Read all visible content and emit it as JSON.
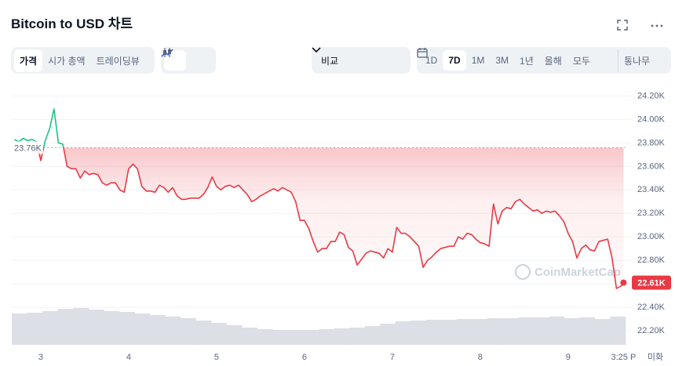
{
  "header": {
    "title": "Bitcoin to USD 차트",
    "tabs": [
      "가격",
      "시가 총액",
      "트레이딩뷰"
    ],
    "compare": "비교",
    "ranges": [
      "1D",
      "7D",
      "1M",
      "3M",
      "1년",
      "올해",
      "모두"
    ],
    "log": "통나무"
  },
  "watermark": "CoinMarketCap",
  "currency": "미화",
  "chart_data": {
    "type": "line",
    "x": [
      2.7,
      2.75,
      2.8,
      2.85,
      2.9,
      2.95,
      3,
      3.05,
      3.1,
      3.15,
      3.2,
      3.25,
      3.3,
      3.35,
      3.4,
      3.45,
      3.5,
      3.55,
      3.6,
      3.65,
      3.7,
      3.75,
      3.8,
      3.85,
      3.9,
      3.95,
      4,
      4.05,
      4.1,
      4.15,
      4.2,
      4.25,
      4.3,
      4.35,
      4.4,
      4.45,
      4.5,
      4.55,
      4.6,
      4.65,
      4.7,
      4.75,
      4.8,
      4.85,
      4.9,
      4.95,
      5,
      5.05,
      5.1,
      5.15,
      5.2,
      5.25,
      5.3,
      5.35,
      5.4,
      5.45,
      5.5,
      5.55,
      5.6,
      5.65,
      5.7,
      5.75,
      5.8,
      5.85,
      5.9,
      5.95,
      6,
      6.05,
      6.1,
      6.15,
      6.2,
      6.25,
      6.3,
      6.35,
      6.4,
      6.45,
      6.5,
      6.55,
      6.6,
      6.65,
      6.7,
      6.75,
      6.8,
      6.85,
      6.9,
      6.95,
      7,
      7.05,
      7.1,
      7.15,
      7.2,
      7.25,
      7.3,
      7.35,
      7.4,
      7.45,
      7.5,
      7.55,
      7.6,
      7.65,
      7.7,
      7.75,
      7.8,
      7.85,
      7.9,
      7.95,
      8,
      8.05,
      8.1,
      8.15,
      8.2,
      8.25,
      8.3,
      8.35,
      8.4,
      8.45,
      8.5,
      8.55,
      8.6,
      8.65,
      8.7,
      8.75,
      8.8,
      8.85,
      8.9,
      8.95,
      9,
      9.05,
      9.1,
      9.15,
      9.2,
      9.25,
      9.3,
      9.35,
      9.4,
      9.45,
      9.5,
      9.55,
      9.6,
      9.63
    ],
    "values": [
      23830,
      23810,
      23840,
      23820,
      23830,
      23810,
      23650,
      23820,
      23920,
      24090,
      23800,
      23790,
      23600,
      23580,
      23580,
      23500,
      23560,
      23530,
      23540,
      23530,
      23460,
      23440,
      23460,
      23460,
      23400,
      23380,
      23580,
      23620,
      23580,
      23430,
      23390,
      23390,
      23380,
      23440,
      23420,
      23380,
      23420,
      23350,
      23320,
      23320,
      23330,
      23330,
      23330,
      23360,
      23420,
      23510,
      23430,
      23400,
      23430,
      23440,
      23420,
      23440,
      23400,
      23360,
      23300,
      23320,
      23350,
      23370,
      23390,
      23410,
      23390,
      23420,
      23400,
      23380,
      23300,
      23140,
      23140,
      23070,
      22960,
      22870,
      22900,
      22900,
      22960,
      22960,
      23040,
      23020,
      22910,
      22880,
      22760,
      22810,
      22860,
      22880,
      22870,
      22860,
      22820,
      22900,
      22870,
      23080,
      23030,
      23030,
      23000,
      22960,
      22920,
      22740,
      22800,
      22830,
      22870,
      22900,
      22910,
      22920,
      22920,
      23000,
      22980,
      23030,
      23020,
      22980,
      22950,
      22940,
      22920,
      23280,
      23110,
      23220,
      23250,
      23240,
      23300,
      23320,
      23280,
      23250,
      23220,
      23230,
      23200,
      23220,
      23210,
      23220,
      23180,
      23130,
      23030,
      22960,
      22820,
      22900,
      22930,
      22890,
      22880,
      22960,
      22970,
      22980,
      22820,
      22560,
      22580,
      22610
    ],
    "up_color": "#16c784",
    "down_color": "#ea3943",
    "xlim": [
      2.67,
      9.68
    ],
    "xticks": [
      3,
      4,
      5,
      6,
      7,
      8,
      9,
      {
        "value": 9.63,
        "label": "3:25 P"
      }
    ],
    "ylim": [
      22080,
      24250
    ],
    "yticks": [
      {
        "value": 24200,
        "label": "24.20K"
      },
      {
        "value": 24000,
        "label": "24.00K"
      },
      {
        "value": 23800,
        "label": "23.80K"
      },
      {
        "value": 23600,
        "label": "23.60K"
      },
      {
        "value": 23400,
        "label": "23.40K"
      },
      {
        "value": 23200,
        "label": "23.20K"
      },
      {
        "value": 23000,
        "label": "23.00K"
      },
      {
        "value": 22800,
        "label": "22.80K"
      },
      {
        "value": 22600,
        "label": "22.60K"
      },
      {
        "value": 22400,
        "label": "22.40K"
      },
      {
        "value": 22200,
        "label": "22.20K"
      }
    ],
    "grid": true,
    "open_price": {
      "value": 23760,
      "label": "23.76K"
    },
    "last_price": {
      "value": 22610,
      "label": "22.61K"
    },
    "volume": {
      "values": [
        40,
        41,
        43,
        46,
        47,
        45,
        43,
        42,
        40,
        38,
        36,
        34,
        31,
        28,
        25,
        22,
        20,
        19,
        19,
        19,
        20,
        21,
        22,
        24,
        27,
        30,
        31,
        32,
        32,
        33,
        33,
        34,
        34,
        35,
        35,
        36,
        34,
        35,
        33,
        36
      ],
      "lim": [
        0,
        50
      ],
      "color": "#dcdfe6"
    }
  }
}
